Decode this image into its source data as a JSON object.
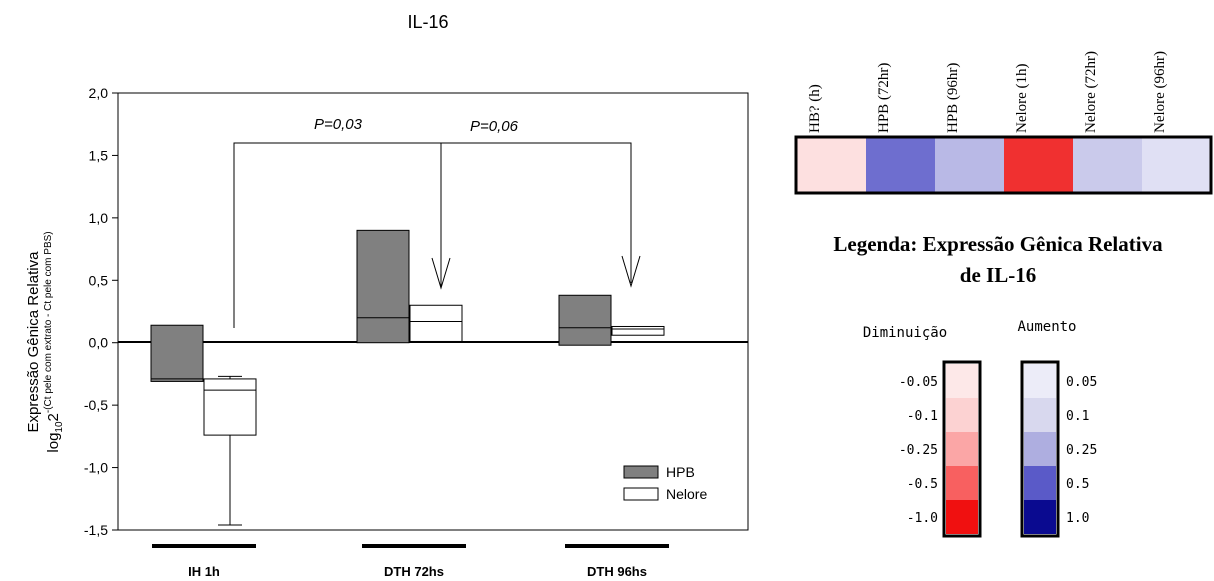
{
  "chart_data": [
    {
      "type": "box",
      "title": "IL-16",
      "ylabel_line1": "Expressão Gênica Relativa",
      "ylabel_line2_base": "log",
      "ylabel_line2_sub": "10",
      "ylabel_line2_main": "2",
      "ylabel_line2_exp": "-(Ct pele com extrato - Ct pele com PBS)",
      "ylim": [
        -1.5,
        2.0
      ],
      "yticks": [
        "2,0",
        "1,5",
        "1,0",
        "0,5",
        "0,0",
        "-0,5",
        "-1,0",
        "-1,5"
      ],
      "ytick_values": [
        2.0,
        1.5,
        1.0,
        0.5,
        0.0,
        -0.5,
        -1.0,
        -1.5
      ],
      "categories": [
        "IH 1h",
        "DTH 72hs",
        "DTH 96hs"
      ],
      "series": [
        {
          "name": "HPB",
          "color": "#808080",
          "boxes": [
            {
              "q1": -0.31,
              "median": -0.29,
              "q3": 0.14
            },
            {
              "q1": 0.0,
              "median": 0.2,
              "q3": 0.9
            },
            {
              "q1": -0.02,
              "median": 0.12,
              "q3": 0.38
            }
          ]
        },
        {
          "name": "Nelore",
          "color": "#ffffff",
          "boxes": [
            {
              "min": -1.46,
              "q1": -0.74,
              "median": -0.38,
              "q3": -0.29,
              "max": -0.27
            },
            {
              "q1": 0.01,
              "median": 0.17,
              "q3": 0.3
            },
            {
              "q1": 0.06,
              "median": 0.11,
              "q3": 0.13
            }
          ]
        }
      ],
      "annotations": [
        {
          "text": "P=0,03",
          "compare": "IH 1h vs DTH 72hs Nelore"
        },
        {
          "text": "P=0,06",
          "compare": "IH 1h vs DTH 96hs Nelore"
        }
      ],
      "legend_position": "bottom-right"
    },
    {
      "type": "heatmap",
      "columns": [
        "HB? (h)",
        "HPB (72hr)",
        "HPB (96hr)",
        "Nelore (1h)",
        "Nelore (72hr)",
        "Nelore (96hr)"
      ],
      "cell_colors": [
        "#fde0e0",
        "#6e6ecf",
        "#b9b9e6",
        "#f03030",
        "#cacaeb",
        "#e0e0f4"
      ],
      "legend_title": "Legenda: Expressão Gênica Relativa de IL-16",
      "decrease_label": "Diminuição",
      "increase_label": "Aumento",
      "decrease_scale": [
        {
          "label": "-0.05",
          "color": "#fde8e8"
        },
        {
          "label": "-0.1",
          "color": "#fcd2d2"
        },
        {
          "label": "-0.25",
          "color": "#fba6a6"
        },
        {
          "label": "-0.5",
          "color": "#f86060"
        },
        {
          "label": "-1.0",
          "color": "#f01010"
        }
      ],
      "increase_scale": [
        {
          "label": "0.05",
          "color": "#ececf8"
        },
        {
          "label": "0.1",
          "color": "#d8d8ee"
        },
        {
          "label": "0.25",
          "color": "#aeaee0"
        },
        {
          "label": "0.5",
          "color": "#5a5ac8"
        },
        {
          "label": "1.0",
          "color": "#0a0a90"
        }
      ]
    }
  ]
}
